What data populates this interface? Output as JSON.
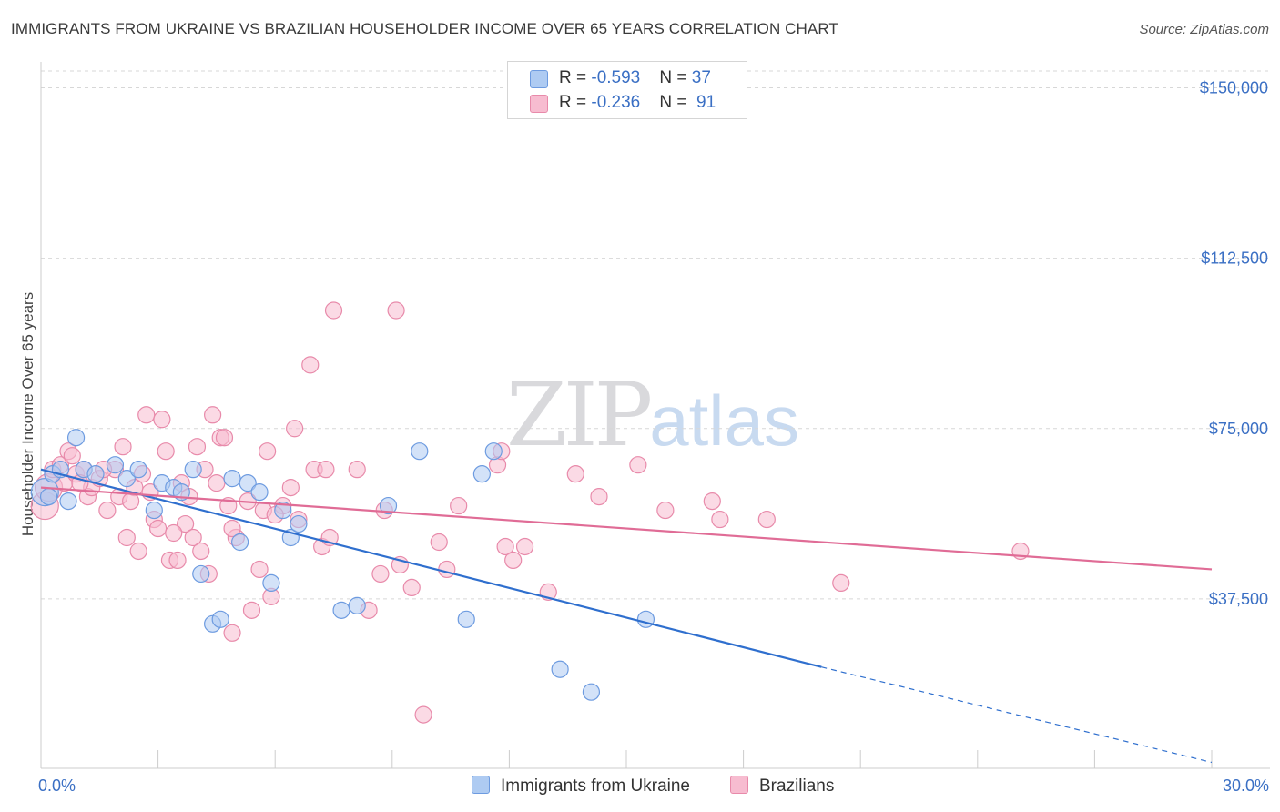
{
  "title": "IMMIGRANTS FROM UKRAINE VS BRAZILIAN HOUSEHOLDER INCOME OVER 65 YEARS CORRELATION CHART",
  "source": "Source: ZipAtlas.com",
  "watermark": {
    "zip": "ZIP",
    "atlas": "atlas"
  },
  "legend": {
    "rows": [
      {
        "r_label": "R = ",
        "r_value": "-0.593",
        "n_label": "N = ",
        "n_value": "37",
        "color": "#aecbf2"
      },
      {
        "r_label": "R = ",
        "r_value": "-0.236",
        "n_label": "N = ",
        "n_value": "91",
        "color": "#f7bcd0"
      }
    ]
  },
  "colors": {
    "ukraine_fill": "#aecbf2",
    "ukraine_stroke": "#6d9be0",
    "ukraine_line": "#2f6fce",
    "brazil_fill": "#f7bcd0",
    "brazil_stroke": "#e88aaa",
    "brazil_line": "#e06c96",
    "grid": "#d7d7d7",
    "tick_label": "#3a6fc4"
  },
  "chart_data": {
    "type": "scatter",
    "title": "IMMIGRANTS FROM UKRAINE VS BRAZILIAN HOUSEHOLDER INCOME OVER 65 YEARS CORRELATION CHART",
    "xlabel": "",
    "ylabel": "Householder Income Over 65 years",
    "xlim": [
      0,
      30
    ],
    "ylim": [
      0,
      155000
    ],
    "x_tick_labels": [
      "0.0%",
      "30.0%"
    ],
    "y_ticks": [
      37500,
      75000,
      112500,
      150000
    ],
    "y_tick_labels": [
      "$37,500",
      "$75,000",
      "$112,500",
      "$150,000"
    ],
    "grid": true,
    "legend_position": "top-center",
    "series": [
      {
        "name": "Immigrants from Ukraine",
        "points": [
          [
            0.1,
            61000,
            2
          ],
          [
            0.3,
            65000,
            1
          ],
          [
            0.5,
            66000,
            1
          ],
          [
            0.7,
            59000,
            1
          ],
          [
            0.9,
            73000,
            1
          ],
          [
            1.1,
            66000,
            1
          ],
          [
            1.4,
            65000,
            1
          ],
          [
            1.9,
            67000,
            1
          ],
          [
            2.2,
            64000,
            1
          ],
          [
            2.5,
            66000,
            1
          ],
          [
            2.9,
            57000,
            1
          ],
          [
            3.1,
            63000,
            1
          ],
          [
            3.4,
            62000,
            1
          ],
          [
            3.6,
            61000,
            1
          ],
          [
            3.9,
            66000,
            1
          ],
          [
            4.1,
            43000,
            1
          ],
          [
            4.4,
            32000,
            1
          ],
          [
            4.6,
            33000,
            1
          ],
          [
            4.9,
            64000,
            1
          ],
          [
            5.1,
            50000,
            1
          ],
          [
            5.3,
            63000,
            1
          ],
          [
            5.6,
            61000,
            1
          ],
          [
            5.9,
            41000,
            1
          ],
          [
            6.2,
            57000,
            1
          ],
          [
            6.4,
            51000,
            1
          ],
          [
            6.6,
            54000,
            1
          ],
          [
            7.7,
            35000,
            1
          ],
          [
            8.1,
            36000,
            1
          ],
          [
            8.9,
            58000,
            1
          ],
          [
            9.7,
            70000,
            1
          ],
          [
            10.9,
            33000,
            1
          ],
          [
            11.3,
            65000,
            1
          ],
          [
            11.6,
            70000,
            1
          ],
          [
            13.3,
            22000,
            1
          ],
          [
            14.1,
            17000,
            1
          ],
          [
            15.5,
            33000,
            1
          ],
          [
            0.2,
            60000,
            1
          ]
        ],
        "trend": {
          "x0": 0.0,
          "y0": 66000,
          "x1": 20.0,
          "y1": 22500,
          "dash_to_x": 30.0,
          "dash_to_y": 1500
        }
      },
      {
        "name": "Brazilians",
        "points": [
          [
            0.1,
            58000,
            2
          ],
          [
            0.2,
            62000,
            2
          ],
          [
            0.3,
            66000,
            1
          ],
          [
            0.5,
            67000,
            1
          ],
          [
            0.6,
            63000,
            1
          ],
          [
            0.7,
            70000,
            1
          ],
          [
            0.9,
            65000,
            1
          ],
          [
            1.1,
            66000,
            1
          ],
          [
            1.2,
            60000,
            1
          ],
          [
            1.3,
            62000,
            1
          ],
          [
            1.5,
            64000,
            1
          ],
          [
            1.7,
            57000,
            1
          ],
          [
            1.9,
            66000,
            1
          ],
          [
            2.0,
            60000,
            1
          ],
          [
            2.1,
            71000,
            1
          ],
          [
            2.2,
            51000,
            1
          ],
          [
            2.4,
            62000,
            1
          ],
          [
            2.5,
            48000,
            1
          ],
          [
            2.6,
            65000,
            1
          ],
          [
            2.7,
            78000,
            1
          ],
          [
            2.8,
            61000,
            1
          ],
          [
            2.9,
            55000,
            1
          ],
          [
            3.0,
            53000,
            1
          ],
          [
            3.1,
            77000,
            1
          ],
          [
            3.2,
            70000,
            1
          ],
          [
            3.3,
            46000,
            1
          ],
          [
            3.5,
            46000,
            1
          ],
          [
            3.6,
            63000,
            1
          ],
          [
            3.7,
            54000,
            1
          ],
          [
            3.8,
            60000,
            1
          ],
          [
            3.9,
            51000,
            1
          ],
          [
            4.0,
            71000,
            1
          ],
          [
            4.1,
            48000,
            1
          ],
          [
            4.2,
            66000,
            1
          ],
          [
            4.3,
            43000,
            1
          ],
          [
            4.4,
            78000,
            1
          ],
          [
            4.5,
            63000,
            1
          ],
          [
            4.6,
            73000,
            1
          ],
          [
            4.7,
            73000,
            1
          ],
          [
            4.8,
            58000,
            1
          ],
          [
            4.9,
            30000,
            1
          ],
          [
            5.0,
            51000,
            1
          ],
          [
            5.3,
            59000,
            1
          ],
          [
            5.4,
            35000,
            1
          ],
          [
            5.6,
            44000,
            1
          ],
          [
            5.7,
            57000,
            1
          ],
          [
            5.8,
            70000,
            1
          ],
          [
            5.9,
            38000,
            1
          ],
          [
            6.2,
            58000,
            1
          ],
          [
            6.4,
            62000,
            1
          ],
          [
            6.5,
            75000,
            1
          ],
          [
            6.6,
            55000,
            1
          ],
          [
            6.9,
            89000,
            1
          ],
          [
            7.0,
            66000,
            1
          ],
          [
            7.2,
            49000,
            1
          ],
          [
            7.3,
            66000,
            1
          ],
          [
            7.4,
            51000,
            1
          ],
          [
            7.5,
            101000,
            1
          ],
          [
            8.1,
            66000,
            1
          ],
          [
            8.4,
            35000,
            1
          ],
          [
            8.7,
            43000,
            1
          ],
          [
            8.8,
            57000,
            1
          ],
          [
            9.1,
            101000,
            1
          ],
          [
            9.2,
            45000,
            1
          ],
          [
            9.5,
            40000,
            1
          ],
          [
            9.8,
            12000,
            1
          ],
          [
            10.2,
            50000,
            1
          ],
          [
            10.4,
            44000,
            1
          ],
          [
            10.7,
            58000,
            1
          ],
          [
            11.7,
            67000,
            1
          ],
          [
            11.8,
            70000,
            1
          ],
          [
            11.9,
            49000,
            1
          ],
          [
            12.1,
            46000,
            1
          ],
          [
            12.4,
            49000,
            1
          ],
          [
            13.0,
            39000,
            1
          ],
          [
            13.7,
            65000,
            1
          ],
          [
            14.3,
            60000,
            1
          ],
          [
            15.3,
            67000,
            1
          ],
          [
            16.0,
            57000,
            1
          ],
          [
            17.2,
            59000,
            1
          ],
          [
            17.4,
            55000,
            1
          ],
          [
            18.6,
            55000,
            1
          ],
          [
            20.5,
            41000,
            1
          ],
          [
            25.1,
            48000,
            1
          ],
          [
            1.6,
            66000,
            1
          ],
          [
            2.3,
            59000,
            1
          ],
          [
            0.8,
            69000,
            1
          ],
          [
            1.0,
            63000,
            1
          ],
          [
            3.4,
            52000,
            1
          ],
          [
            4.9,
            53000,
            1
          ],
          [
            6.0,
            56000,
            1
          ]
        ],
        "trend": {
          "x0": 0.0,
          "y0": 62000,
          "x1": 30.0,
          "y1": 44000
        }
      }
    ]
  }
}
